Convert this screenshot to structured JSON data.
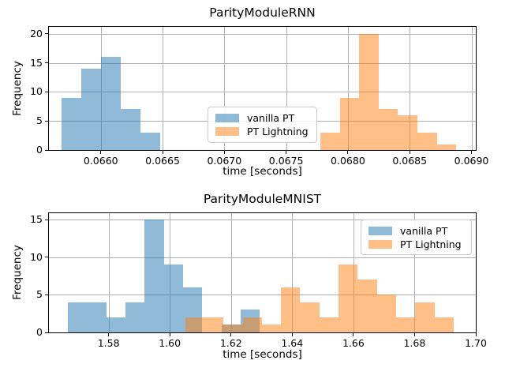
{
  "figure": {
    "background": "#ffffff"
  },
  "style": {
    "grid_color": "#b0b0b0",
    "spine_color": "#000000",
    "text_color": "#000000",
    "fill_alpha": 0.5,
    "legend_border_color": "#cccccc",
    "series_colors": {
      "vanilla_pt": "#1f77b4",
      "pt_lightning": "#ff7f0e"
    }
  },
  "chart_data": [
    {
      "type": "histogram",
      "title": "ParityModuleRNN",
      "xlabel": "time [seconds]",
      "ylabel": "Frequency",
      "xlim": [
        0.06558,
        0.069035
      ],
      "ylim": [
        0,
        21.2
      ],
      "grid": true,
      "legend_position": "center",
      "xticks": [
        0.066,
        0.0665,
        0.067,
        0.0675,
        0.068,
        0.0685,
        0.069
      ],
      "xtick_labels": [
        "0.0660",
        "0.0665",
        "0.0670",
        "0.0675",
        "0.0680",
        "0.0685",
        "0.0690"
      ],
      "yticks": [
        0,
        5,
        10,
        15,
        20
      ],
      "ytick_labels": [
        "0",
        "5",
        "10",
        "15",
        "20"
      ],
      "series": [
        {
          "name": "vanilla PT",
          "color": "#1f77b4",
          "bin_start": 0.065682,
          "bin_width": 0.00016,
          "counts": [
            9,
            14,
            16,
            7,
            3
          ]
        },
        {
          "name": "PT Lightning",
          "color": "#ff7f0e",
          "bin_start": 0.067777,
          "bin_width": 0.000157,
          "counts": [
            3,
            9,
            20,
            7,
            6,
            3,
            1
          ]
        }
      ]
    },
    {
      "type": "histogram",
      "title": "ParityModuleMNIST",
      "xlabel": "time [seconds]",
      "ylabel": "Frequency",
      "xlim": [
        1.5605,
        1.7
      ],
      "ylim": [
        0,
        15.84
      ],
      "grid": true,
      "legend_position": "upper right",
      "xticks": [
        1.58,
        1.6,
        1.62,
        1.64,
        1.66,
        1.68,
        1.7
      ],
      "xtick_labels": [
        "1.58",
        "1.60",
        "1.62",
        "1.64",
        "1.66",
        "1.68",
        "1.70"
      ],
      "yticks": [
        0,
        5,
        10,
        15
      ],
      "ytick_labels": [
        "0",
        "5",
        "10",
        "15"
      ],
      "series": [
        {
          "name": "vanilla PT",
          "color": "#1f77b4",
          "bin_start": 1.56674,
          "bin_width": 0.00627,
          "counts": [
            4,
            4,
            2,
            4,
            15,
            9,
            6,
            0,
            1,
            3
          ]
        },
        {
          "name": "PT Lightning",
          "color": "#ff7f0e",
          "bin_start": 1.605,
          "bin_width": 0.00627,
          "counts": [
            2,
            2,
            1,
            2,
            1,
            6,
            4,
            2,
            9,
            7,
            5,
            2,
            4,
            2
          ]
        }
      ]
    }
  ]
}
